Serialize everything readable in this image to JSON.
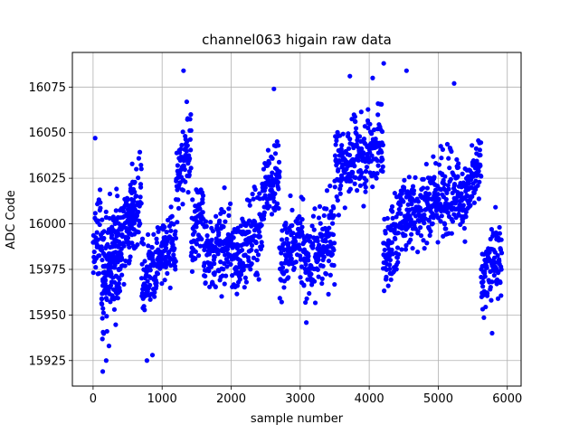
{
  "chart_data": {
    "type": "scatter",
    "title": "channel063 higain raw data",
    "xlabel": "sample number",
    "ylabel": "ADC Code",
    "xlim": [
      -300,
      6200
    ],
    "ylim": [
      15911,
      16094
    ],
    "x_ticks": [
      0,
      1000,
      2000,
      3000,
      4000,
      5000,
      6000
    ],
    "y_ticks": [
      15925,
      15950,
      15975,
      16000,
      16025,
      16050,
      16075
    ],
    "grid": true,
    "marker": "circle",
    "color": "#0000ff",
    "segments": [
      {
        "x": [
          0,
          120
        ],
        "y": [
          15985,
          16000
        ]
      },
      {
        "x": [
          120,
          600
        ],
        "y": [
          15980,
          16005
        ]
      },
      {
        "x": [
          120,
          420
        ],
        "y": [
          15960,
          15978
        ]
      },
      {
        "x": [
          480,
          700
        ],
        "y": [
          16000,
          16020
        ]
      },
      {
        "x": [
          700,
          1200
        ],
        "y": [
          15970,
          15990
        ]
      },
      {
        "x": [
          1200,
          1420
        ],
        "y": [
          16020,
          16045
        ]
      },
      {
        "x": [
          1420,
          1600
        ],
        "y": [
          15995,
          16010
        ]
      },
      {
        "x": [
          1600,
          2000
        ],
        "y": [
          15980,
          15990
        ]
      },
      {
        "x": [
          2000,
          2450
        ],
        "y": [
          15980,
          16000
        ]
      },
      {
        "x": [
          2450,
          2700
        ],
        "y": [
          16015,
          16030
        ]
      },
      {
        "x": [
          2700,
          3050
        ],
        "y": [
          15980,
          15995
        ]
      },
      {
        "x": [
          3050,
          3500
        ],
        "y": [
          15975,
          15995
        ]
      },
      {
        "x": [
          3500,
          4200
        ],
        "y": [
          16030,
          16045
        ]
      },
      {
        "x": [
          4200,
          4450
        ],
        "y": [
          15980,
          16000
        ]
      },
      {
        "x": [
          4450,
          5300
        ],
        "y": [
          16005,
          16020
        ]
      },
      {
        "x": [
          5300,
          5620
        ],
        "y": [
          16010,
          16030
        ]
      },
      {
        "x": [
          5620,
          5920
        ],
        "y": [
          15970,
          15985
        ]
      }
    ],
    "outliers": [
      {
        "x": 30,
        "y": 16047
      },
      {
        "x": 140,
        "y": 15919
      },
      {
        "x": 190,
        "y": 15925
      },
      {
        "x": 230,
        "y": 15933
      },
      {
        "x": 780,
        "y": 15925
      },
      {
        "x": 860,
        "y": 15928
      },
      {
        "x": 1310,
        "y": 16084
      },
      {
        "x": 2620,
        "y": 16074
      },
      {
        "x": 4050,
        "y": 16080
      },
      {
        "x": 4210,
        "y": 16088
      },
      {
        "x": 4540,
        "y": 16084
      },
      {
        "x": 5230,
        "y": 16077
      },
      {
        "x": 5780,
        "y": 15940
      },
      {
        "x": 3720,
        "y": 16081
      }
    ]
  }
}
